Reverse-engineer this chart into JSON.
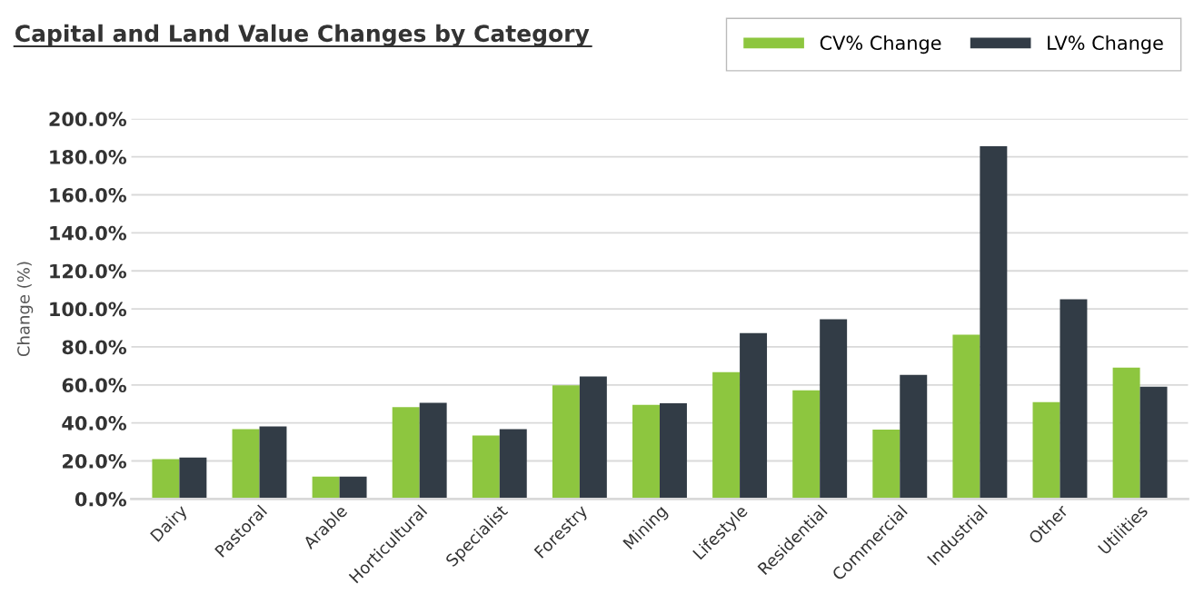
{
  "chart_data": {
    "type": "bar",
    "title": "Capital and Land Value Changes by Category",
    "ylabel": "Change (%)",
    "categories": [
      "Dairy",
      "Pastoral",
      "Arable",
      "Horticultural",
      "Specialist",
      "Forestry",
      "Mining",
      "Lifestyle",
      "Residential",
      "Commercial",
      "Industrial",
      "Other",
      "Utilities"
    ],
    "series": [
      {
        "name": "CV% Change",
        "color": "#8dc63f",
        "values": [
          20.9,
          36.7,
          11.7,
          48.3,
          33.4,
          59.8,
          49.5,
          66.7,
          57.1,
          36.5,
          86.4,
          50.9,
          69.1
        ]
      },
      {
        "name": "LV% Change",
        "color": "#323c46",
        "values": [
          21.8,
          38.2,
          11.7,
          50.6,
          36.7,
          64.4,
          50.4,
          87.3,
          94.5,
          65.3,
          185.6,
          105.1,
          59.1
        ]
      }
    ],
    "ylim": [
      0,
      200
    ],
    "yticks": [
      {
        "value": 0,
        "label": "0.0%"
      },
      {
        "value": 20,
        "label": "20.0%"
      },
      {
        "value": 40,
        "label": "40.0%"
      },
      {
        "value": 60,
        "label": "60.0%"
      },
      {
        "value": 80,
        "label": "80.0%"
      },
      {
        "value": 100,
        "label": "100.0%"
      },
      {
        "value": 120,
        "label": "120.0%"
      },
      {
        "value": 140,
        "label": "140.0%"
      },
      {
        "value": 160,
        "label": "160.0%"
      },
      {
        "value": 180,
        "label": "180.0%"
      },
      {
        "value": 200,
        "label": "200.0%"
      }
    ],
    "grid": "y",
    "legend": "top right"
  }
}
